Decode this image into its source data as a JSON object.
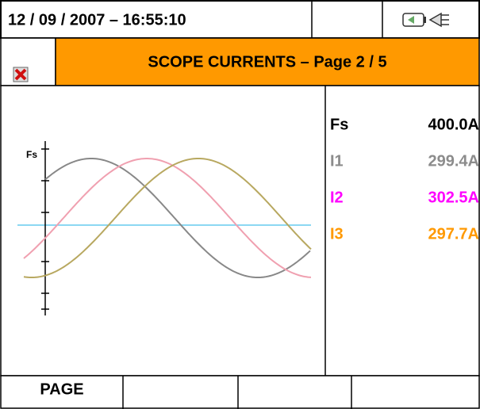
{
  "header": {
    "datetime": "12 / 09 / 2007 – 16:55:10"
  },
  "title": "SCOPE CURRENTS – Page 2 / 5",
  "plot": {
    "axis_label": "Fs"
  },
  "readings": [
    {
      "label": "Fs",
      "value": "400.0A",
      "color": "#000000"
    },
    {
      "label": "I1",
      "value": "299.4A",
      "color": "#8c8c8c"
    },
    {
      "label": "I2",
      "value": "302.5A",
      "color": "#ff00ff"
    },
    {
      "label": "I3",
      "value": "297.7A",
      "color": "#ff9900"
    }
  ],
  "footer": {
    "buttons": [
      "PAGE"
    ]
  }
}
